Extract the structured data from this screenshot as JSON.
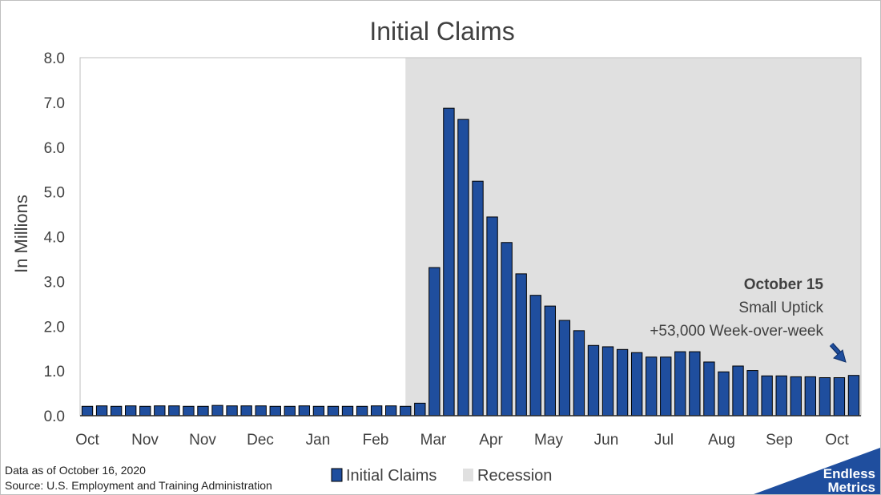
{
  "chart_data": {
    "type": "bar",
    "title": "Initial Claims",
    "ylabel": "In Millions",
    "ylim": [
      0,
      8
    ],
    "yticks": [
      "0.0",
      "1.0",
      "2.0",
      "3.0",
      "4.0",
      "5.0",
      "6.0",
      "7.0",
      "8.0"
    ],
    "xtick_labels": [
      "Oct",
      "Nov",
      "Nov",
      "Dec",
      "Jan",
      "Feb",
      "Mar",
      "Apr",
      "May",
      "Jun",
      "Jul",
      "Aug",
      "Sep",
      "Oct"
    ],
    "grid": false,
    "legend_position": "bottom",
    "series": [
      {
        "name": "Initial Claims",
        "color": "#1f4e9e",
        "values": [
          0.21,
          0.22,
          0.21,
          0.22,
          0.21,
          0.22,
          0.22,
          0.21,
          0.21,
          0.23,
          0.22,
          0.22,
          0.22,
          0.21,
          0.21,
          0.22,
          0.21,
          0.21,
          0.21,
          0.21,
          0.22,
          0.22,
          0.21,
          0.28,
          3.31,
          6.87,
          6.62,
          5.24,
          4.44,
          3.87,
          3.17,
          2.69,
          2.45,
          2.13,
          1.9,
          1.57,
          1.54,
          1.48,
          1.41,
          1.31,
          1.31,
          1.43,
          1.43,
          1.2,
          0.98,
          1.11,
          1.01,
          0.89,
          0.89,
          0.87,
          0.87,
          0.85,
          0.85,
          0.9
        ]
      }
    ],
    "recession": {
      "name": "Recession",
      "color": "#e0e0e0",
      "start_index": 22,
      "end_index": 53
    },
    "annotation": {
      "lines": [
        "October 15",
        "Small Uptick",
        "+53,000 Week-over-week"
      ]
    }
  },
  "footnote": {
    "line1": "Data as of October 16, 2020",
    "line2": "Source: U.S. Employment and Training Administration"
  },
  "logo": {
    "line1": "Endless",
    "line2": "Metrics",
    "color": "#1f4e9e"
  }
}
